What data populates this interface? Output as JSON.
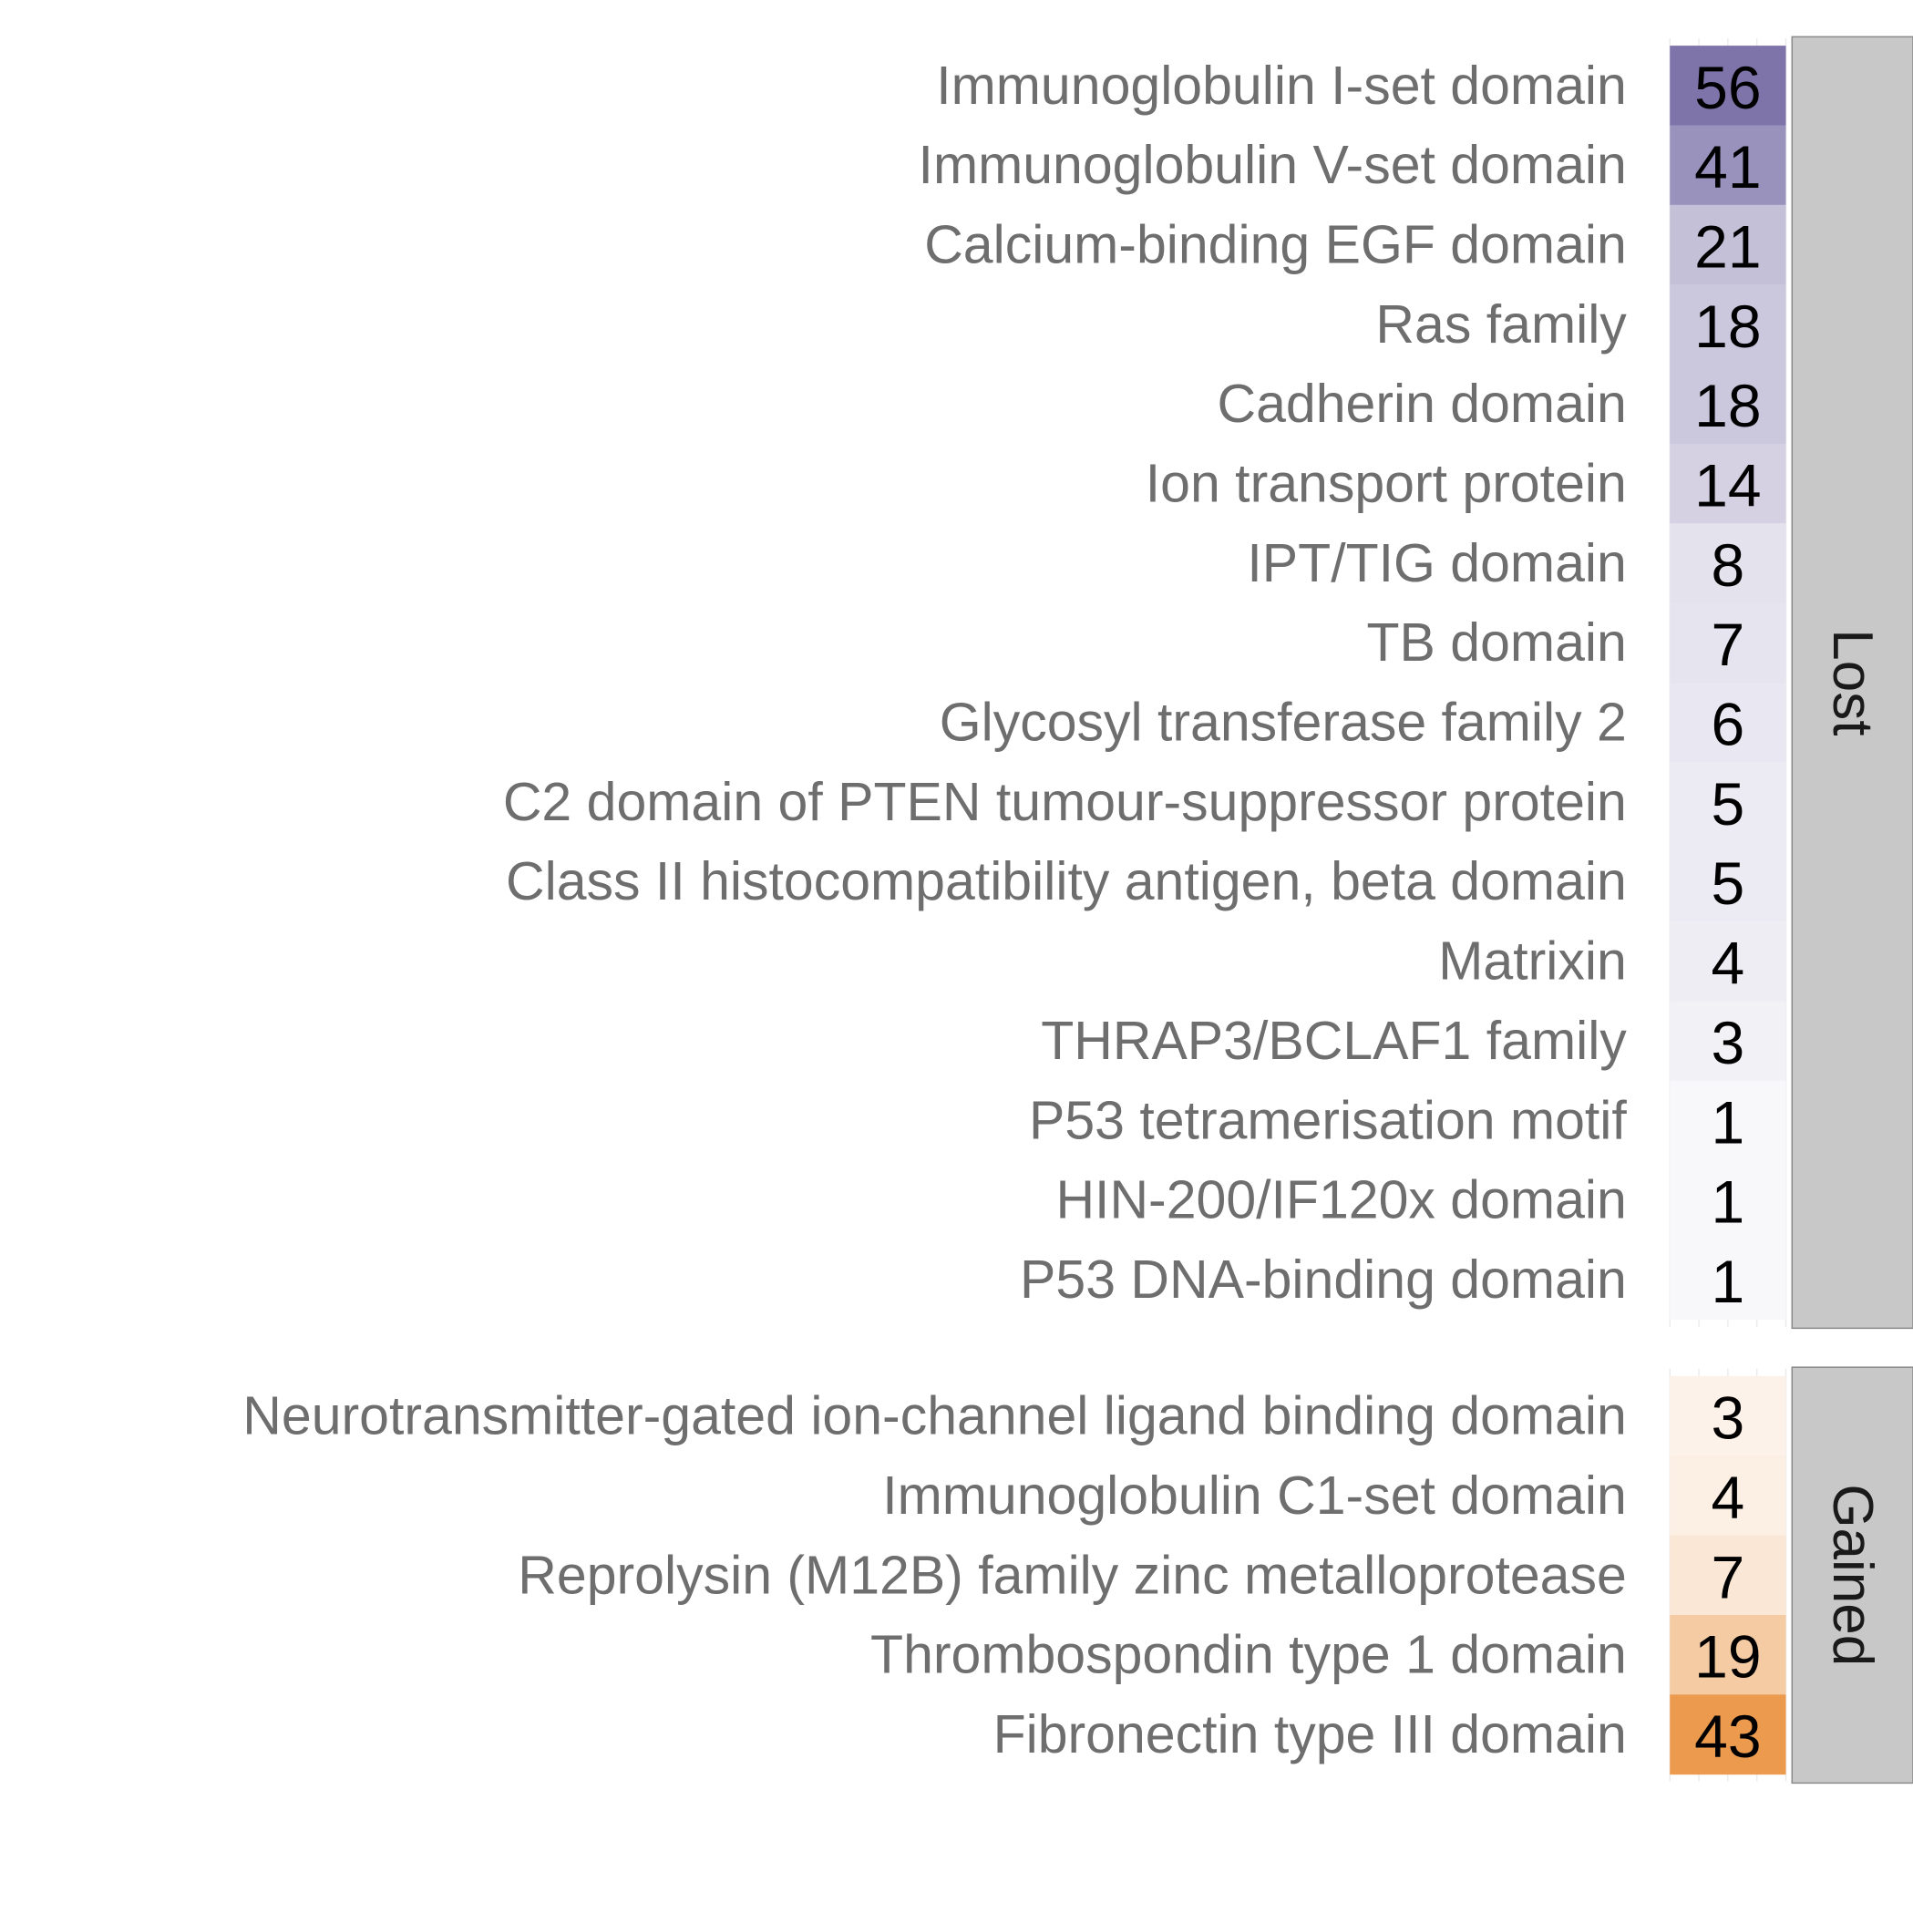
{
  "chart_data": {
    "type": "heatmap",
    "title": "",
    "xlabel": "",
    "ylabel": "",
    "grid": true,
    "legend": "none",
    "panels": [
      {
        "name": "Lost",
        "color_scale": {
          "low": "#ffffff",
          "high": "#7e74aa",
          "max": 56
        },
        "rows": [
          {
            "label": "Immunoglobulin I-set domain",
            "value": 56
          },
          {
            "label": "Immunoglobulin V-set domain",
            "value": 41
          },
          {
            "label": "Calcium-binding EGF domain",
            "value": 21
          },
          {
            "label": "Ras family",
            "value": 18
          },
          {
            "label": "Cadherin domain",
            "value": 18
          },
          {
            "label": "Ion transport protein",
            "value": 14
          },
          {
            "label": "IPT/TIG domain",
            "value": 8
          },
          {
            "label": "TB domain",
            "value": 7
          },
          {
            "label": "Glycosyl transferase family 2",
            "value": 6
          },
          {
            "label": "C2 domain of PTEN tumour-suppressor protein",
            "value": 5
          },
          {
            "label": "Class II histocompatibility antigen, beta domain",
            "value": 5
          },
          {
            "label": "Matrixin",
            "value": 4
          },
          {
            "label": "THRAP3/BCLAF1 family",
            "value": 3
          },
          {
            "label": "P53 tetramerisation motif",
            "value": 1
          },
          {
            "label": "HIN-200/IF120x domain",
            "value": 1
          },
          {
            "label": "P53 DNA-binding domain",
            "value": 1
          }
        ]
      },
      {
        "name": "Gained",
        "color_scale": {
          "low": "#ffffff",
          "high": "#ec9a4e",
          "max": 43
        },
        "rows": [
          {
            "label": "Neurotransmitter-gated ion-channel ligand binding domain",
            "value": 3
          },
          {
            "label": "Immunoglobulin C1-set domain",
            "value": 4
          },
          {
            "label": "Reprolysin (M12B) family zinc metalloprotease",
            "value": 7
          },
          {
            "label": "Thrombospondin type 1 domain",
            "value": 19
          },
          {
            "label": "Fibronectin type III domain",
            "value": 43
          }
        ]
      }
    ]
  }
}
